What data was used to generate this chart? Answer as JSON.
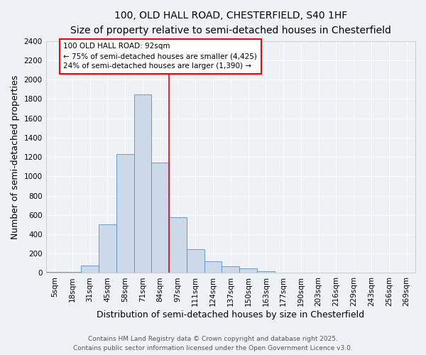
{
  "title1": "100, OLD HALL ROAD, CHESTERFIELD, S40 1HF",
  "title2": "Size of property relative to semi-detached houses in Chesterfield",
  "xlabel": "Distribution of semi-detached houses by size in Chesterfield",
  "ylabel": "Number of semi-detached properties",
  "categories": [
    "5sqm",
    "18sqm",
    "31sqm",
    "45sqm",
    "58sqm",
    "71sqm",
    "84sqm",
    "97sqm",
    "111sqm",
    "124sqm",
    "137sqm",
    "150sqm",
    "163sqm",
    "177sqm",
    "190sqm",
    "203sqm",
    "216sqm",
    "229sqm",
    "243sqm",
    "256sqm",
    "269sqm"
  ],
  "bar_heights": [
    10,
    10,
    80,
    500,
    1230,
    1850,
    1140,
    575,
    245,
    120,
    70,
    50,
    15,
    5,
    5,
    5,
    0,
    0,
    0,
    0,
    0
  ],
  "bar_color": "#ccd9e8",
  "bar_edge_color": "#5b8ec4",
  "vline_pos": 7.5,
  "vline_color": "red",
  "annotation_text": "100 OLD HALL ROAD: 92sqm\n← 75% of semi-detached houses are smaller (4,425)\n24% of semi-detached houses are larger (1,390) →",
  "annotation_box_color": "white",
  "annotation_box_edge": "red",
  "ylim": [
    0,
    2400
  ],
  "yticks": [
    0,
    200,
    400,
    600,
    800,
    1000,
    1200,
    1400,
    1600,
    1800,
    2000,
    2200,
    2400
  ],
  "footnote1": "Contains HM Land Registry data © Crown copyright and database right 2025.",
  "footnote2": "Contains public sector information licensed under the Open Government Licence v3.0.",
  "bg_color": "#eef2f7",
  "grid_color": "white",
  "title_fontsize": 10,
  "subtitle_fontsize": 9,
  "axis_label_fontsize": 9,
  "tick_fontsize": 7.5,
  "footnote_fontsize": 6.5
}
